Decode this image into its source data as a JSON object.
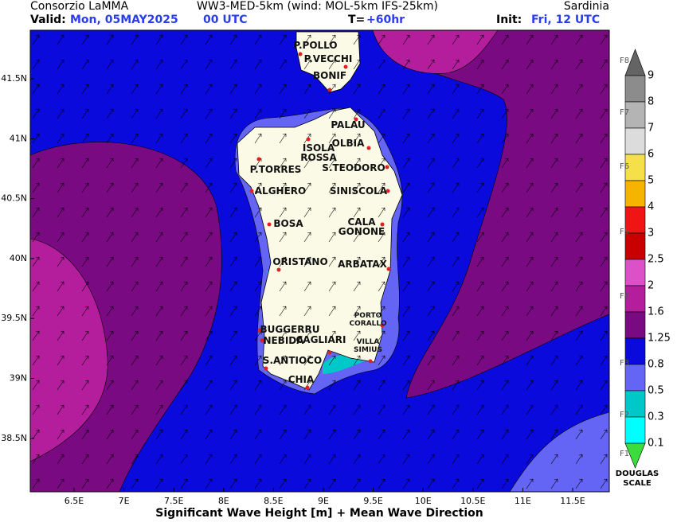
{
  "header": {
    "org": "Consorzio LaMMA",
    "model": "WW3-MED-5km (wind: MOL-5km IFS-25km)",
    "region": "Sardinia",
    "valid_label": "Valid:",
    "valid_date": "Mon, 05MAY2025",
    "valid_time": "00 UTC",
    "lead_label": "T=",
    "lead": "+60hr",
    "init_label": "Init:",
    "init": "Fri, 12 UTC"
  },
  "map": {
    "lon_ticks": [
      "6.5E",
      "7E",
      "7.5E",
      "8E",
      "8.5E",
      "9E",
      "9.5E",
      "10E",
      "10.5E",
      "11E",
      "11.5E"
    ],
    "lat_ticks": [
      "41.5N",
      "41N",
      "40.5N",
      "40N",
      "39.5N",
      "39N",
      "38.5N"
    ],
    "places": [
      [
        "P.POLLO"
      ],
      [
        "P.VECCHI"
      ],
      [
        "BONIF"
      ],
      [
        "PALAU"
      ],
      [
        "OLBIA"
      ],
      [
        "ISOLA",
        "ROSSA"
      ],
      [
        "P.TORRES"
      ],
      [
        "S.TEODORO"
      ],
      [
        "ALGHERO"
      ],
      [
        "SINISCOLA"
      ],
      [
        "BOSA"
      ],
      [
        "CALA",
        "GONONE"
      ],
      [
        "ORISTANO"
      ],
      [
        "ARBATAX"
      ],
      [
        "PORTO",
        "CORALLO"
      ],
      [
        "BUGGERRU"
      ],
      [
        "NEBIDA"
      ],
      [
        "CAGLIARI"
      ],
      [
        "VILLA",
        "SIMIUS"
      ],
      [
        "S.ANTIOCO"
      ],
      [
        "CHIA"
      ]
    ],
    "caption": "Significant Wave Height [m] + Mean Wave Direction"
  },
  "colorbar": {
    "labels": [
      "9",
      "8",
      "7",
      "6",
      "5",
      "4",
      "3",
      "2.5",
      "2",
      "1.6",
      "1.25",
      "0.8",
      "0.5",
      "0.3",
      "0.1"
    ],
    "colors": [
      "#8c8c8c",
      "#b4b4b4",
      "#dcdcdc",
      "#f5e04a",
      "#f5b400",
      "#f01414",
      "#c80000",
      "#dc50c8",
      "#b41e9c",
      "#7a0a82",
      "#0a0adc",
      "#6464f5",
      "#00c8c8",
      "#00ffff"
    ],
    "douglas": [
      "F8",
      "F7",
      "F6",
      "F5",
      "F4",
      "F3",
      "F2",
      "F1"
    ],
    "scale_name": [
      "DOUGLAS",
      "SCALE"
    ]
  }
}
